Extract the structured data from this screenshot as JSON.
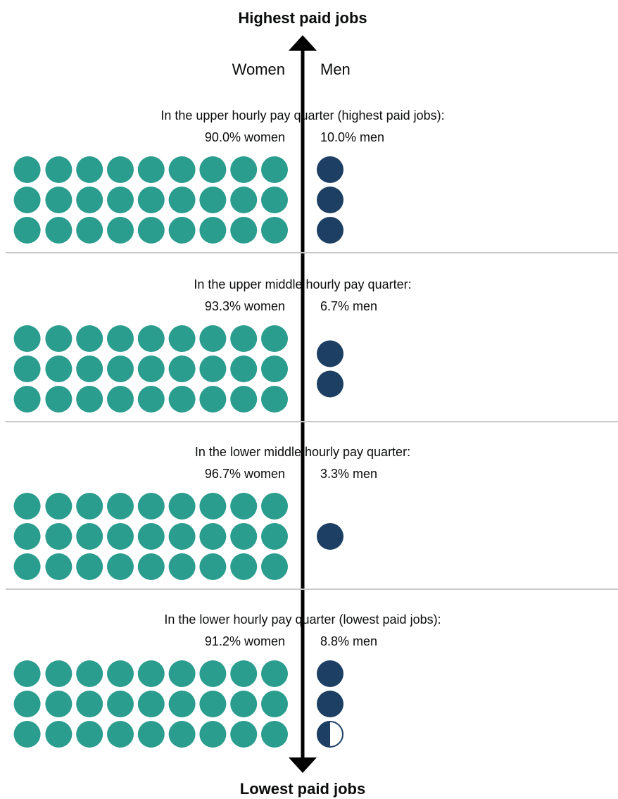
{
  "colors": {
    "women": "#2a9d8f",
    "men": "#1d3f63",
    "axis": "#000000",
    "divider": "#c8c8c8",
    "text": "#0b0c0c"
  },
  "chart_data": {
    "type": "pictogram",
    "title_top": "Highest paid jobs",
    "title_bottom": "Lowest paid jobs",
    "left_label": "Women",
    "right_label": "Men",
    "quarters": [
      {
        "title": "In the upper hourly pay quarter (highest paid jobs):",
        "women_label": "90.0% women",
        "men_label": "10.0% men",
        "women_pct": 90.0,
        "men_pct": 10.0
      },
      {
        "title": "In the upper middle hourly pay quarter:",
        "women_label": "93.3% women",
        "men_label": "6.7% men",
        "women_pct": 93.3,
        "men_pct": 6.7
      },
      {
        "title": "In the lower middle hourly pay quarter:",
        "women_label": "96.7% women",
        "men_label": "3.3% men",
        "women_pct": 96.7,
        "men_pct": 3.3
      },
      {
        "title": "In the lower hourly pay quarter (lowest paid jobs):",
        "women_label": "91.2% women",
        "men_label": "8.8% men",
        "women_pct": 91.2,
        "men_pct": 8.8
      }
    ]
  }
}
